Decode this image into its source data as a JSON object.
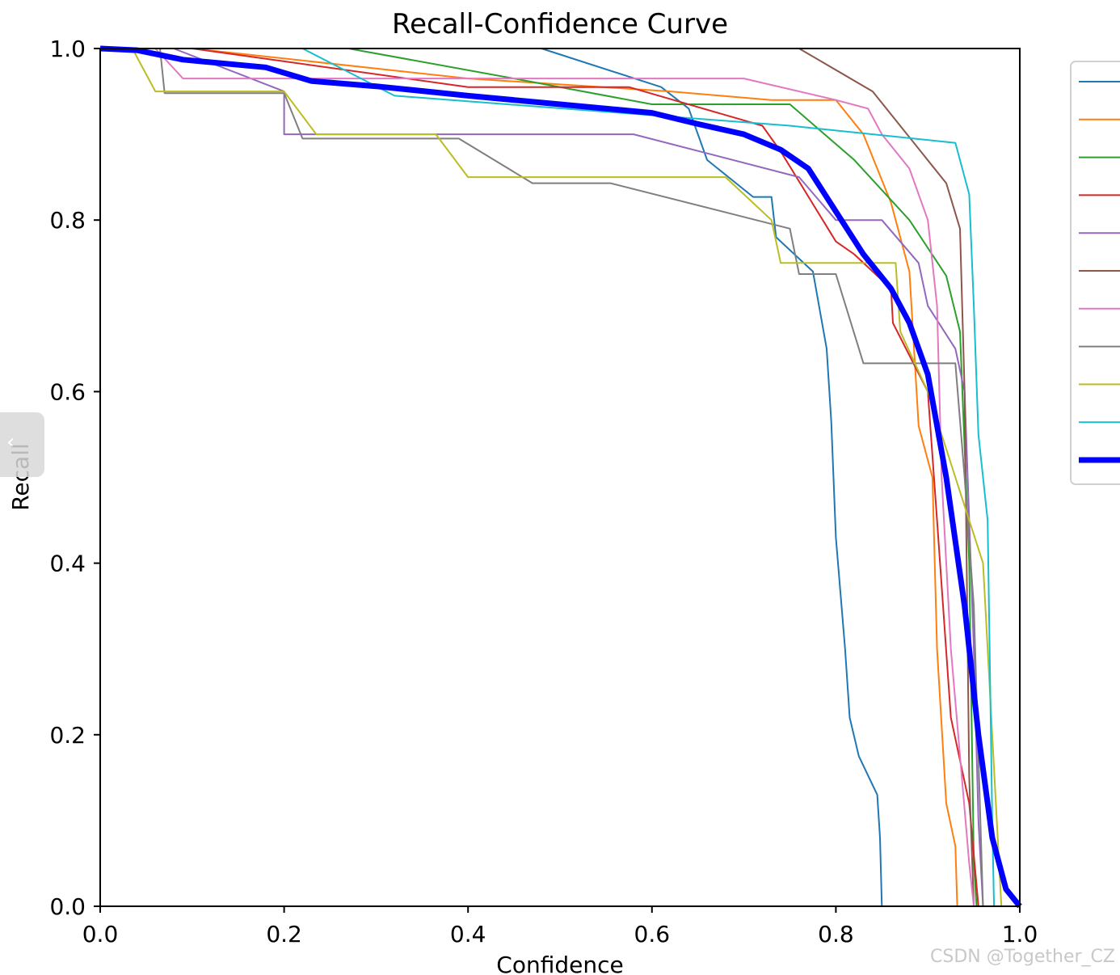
{
  "chart_data": {
    "type": "line",
    "title": "Recall-Confidence Curve",
    "xlabel": "Confidence",
    "ylabel": "Recall",
    "xlim": [
      0,
      1
    ],
    "ylim": [
      0,
      1
    ],
    "xticks": [
      "0.0",
      "0.2",
      "0.4",
      "0.6",
      "0.8",
      "1.0"
    ],
    "yticks": [
      "0.0",
      "0.2",
      "0.4",
      "0.6",
      "0.8",
      "1.0"
    ],
    "grid": false,
    "legend": "right, partially cut off",
    "series": [
      {
        "color": "#1f77b4",
        "width": 2,
        "points": [
          [
            0,
            1
          ],
          [
            0.48,
            1
          ],
          [
            0.61,
            0.955
          ],
          [
            0.64,
            0.93
          ],
          [
            0.66,
            0.87
          ],
          [
            0.71,
            0.827
          ],
          [
            0.73,
            0.827
          ],
          [
            0.735,
            0.78
          ],
          [
            0.775,
            0.74
          ],
          [
            0.79,
            0.65
          ],
          [
            0.795,
            0.565
          ],
          [
            0.8,
            0.43
          ],
          [
            0.81,
            0.3
          ],
          [
            0.815,
            0.22
          ],
          [
            0.825,
            0.175
          ],
          [
            0.845,
            0.13
          ],
          [
            0.848,
            0.08
          ],
          [
            0.85,
            0
          ],
          [
            1,
            0
          ]
        ]
      },
      {
        "color": "#ff7f0e",
        "width": 2,
        "points": [
          [
            0,
            1
          ],
          [
            0.1,
            1
          ],
          [
            0.4,
            0.965
          ],
          [
            0.62,
            0.95
          ],
          [
            0.73,
            0.94
          ],
          [
            0.8,
            0.94
          ],
          [
            0.83,
            0.9
          ],
          [
            0.86,
            0.82
          ],
          [
            0.88,
            0.74
          ],
          [
            0.89,
            0.56
          ],
          [
            0.905,
            0.5
          ],
          [
            0.91,
            0.3
          ],
          [
            0.92,
            0.12
          ],
          [
            0.93,
            0.07
          ],
          [
            0.932,
            0
          ],
          [
            1,
            0
          ]
        ]
      },
      {
        "color": "#2ca02c",
        "width": 2,
        "points": [
          [
            0,
            1
          ],
          [
            0.27,
            1
          ],
          [
            0.45,
            0.965
          ],
          [
            0.6,
            0.935
          ],
          [
            0.75,
            0.935
          ],
          [
            0.82,
            0.87
          ],
          [
            0.88,
            0.8
          ],
          [
            0.92,
            0.735
          ],
          [
            0.935,
            0.67
          ],
          [
            0.945,
            0.4
          ],
          [
            0.95,
            0.05
          ],
          [
            0.953,
            0
          ],
          [
            1,
            0
          ]
        ]
      },
      {
        "color": "#d62728",
        "width": 2,
        "points": [
          [
            0,
            1
          ],
          [
            0.1,
            1
          ],
          [
            0.2,
            0.985
          ],
          [
            0.4,
            0.955
          ],
          [
            0.575,
            0.955
          ],
          [
            0.72,
            0.91
          ],
          [
            0.74,
            0.88
          ],
          [
            0.8,
            0.775
          ],
          [
            0.82,
            0.76
          ],
          [
            0.86,
            0.72
          ],
          [
            0.862,
            0.68
          ],
          [
            0.9,
            0.6
          ],
          [
            0.91,
            0.45
          ],
          [
            0.925,
            0.22
          ],
          [
            0.945,
            0.12
          ],
          [
            0.955,
            0
          ],
          [
            1,
            0
          ]
        ]
      },
      {
        "color": "#9467bd",
        "width": 2,
        "points": [
          [
            0,
            1
          ],
          [
            0.08,
            1
          ],
          [
            0.2,
            0.95
          ],
          [
            0.2,
            0.9
          ],
          [
            0.58,
            0.9
          ],
          [
            0.76,
            0.85
          ],
          [
            0.8,
            0.8
          ],
          [
            0.85,
            0.8
          ],
          [
            0.89,
            0.75
          ],
          [
            0.9,
            0.7
          ],
          [
            0.93,
            0.65
          ],
          [
            0.94,
            0.6
          ],
          [
            0.95,
            0.3
          ],
          [
            0.955,
            0.1
          ],
          [
            0.96,
            0
          ],
          [
            1,
            0
          ]
        ]
      },
      {
        "color": "#8c564b",
        "width": 2,
        "points": [
          [
            0.76,
            1
          ],
          [
            0.84,
            0.95
          ],
          [
            0.92,
            0.843
          ],
          [
            0.935,
            0.79
          ],
          [
            0.94,
            0.6
          ],
          [
            0.945,
            0.15
          ],
          [
            0.95,
            0
          ],
          [
            1,
            0
          ]
        ]
      },
      {
        "color": "#e377c2",
        "width": 2,
        "points": [
          [
            0,
            1
          ],
          [
            0.06,
            1
          ],
          [
            0.09,
            0.965
          ],
          [
            0.7,
            0.965
          ],
          [
            0.8,
            0.94
          ],
          [
            0.835,
            0.93
          ],
          [
            0.85,
            0.9
          ],
          [
            0.88,
            0.86
          ],
          [
            0.9,
            0.8
          ],
          [
            0.91,
            0.7
          ],
          [
            0.915,
            0.5
          ],
          [
            0.925,
            0.3
          ],
          [
            0.945,
            0.05
          ],
          [
            0.95,
            0
          ],
          [
            1,
            0
          ]
        ]
      },
      {
        "color": "#7f7f7f",
        "width": 2,
        "points": [
          [
            0,
            1
          ],
          [
            0.065,
            1
          ],
          [
            0.07,
            0.948
          ],
          [
            0.2,
            0.948
          ],
          [
            0.22,
            0.895
          ],
          [
            0.39,
            0.895
          ],
          [
            0.47,
            0.843
          ],
          [
            0.555,
            0.843
          ],
          [
            0.75,
            0.79
          ],
          [
            0.76,
            0.737
          ],
          [
            0.8,
            0.737
          ],
          [
            0.83,
            0.633
          ],
          [
            0.93,
            0.633
          ],
          [
            0.94,
            0.5
          ],
          [
            0.95,
            0.35
          ],
          [
            0.96,
            0
          ],
          [
            1,
            0
          ]
        ]
      },
      {
        "color": "#bcbd22",
        "width": 2,
        "points": [
          [
            0,
            1
          ],
          [
            0.035,
            1
          ],
          [
            0.06,
            0.95
          ],
          [
            0.2,
            0.95
          ],
          [
            0.235,
            0.9
          ],
          [
            0.365,
            0.9
          ],
          [
            0.4,
            0.85
          ],
          [
            0.68,
            0.85
          ],
          [
            0.73,
            0.8
          ],
          [
            0.74,
            0.75
          ],
          [
            0.865,
            0.75
          ],
          [
            0.87,
            0.67
          ],
          [
            0.9,
            0.6
          ],
          [
            0.93,
            0.5
          ],
          [
            0.96,
            0.4
          ],
          [
            0.965,
            0.3
          ],
          [
            0.98,
            0
          ],
          [
            1,
            0
          ]
        ]
      },
      {
        "color": "#17becf",
        "width": 2,
        "points": [
          [
            0,
            1
          ],
          [
            0.22,
            1
          ],
          [
            0.32,
            0.945
          ],
          [
            0.75,
            0.91
          ],
          [
            0.93,
            0.89
          ],
          [
            0.945,
            0.83
          ],
          [
            0.95,
            0.7
          ],
          [
            0.955,
            0.55
          ],
          [
            0.965,
            0.45
          ],
          [
            0.97,
            0.1
          ],
          [
            0.972,
            0
          ],
          [
            1,
            0
          ]
        ]
      },
      {
        "color": "#0000ff",
        "width": 7,
        "points": [
          [
            0,
            1
          ],
          [
            0.04,
            0.998
          ],
          [
            0.09,
            0.987
          ],
          [
            0.18,
            0.978
          ],
          [
            0.23,
            0.962
          ],
          [
            0.3,
            0.956
          ],
          [
            0.4,
            0.945
          ],
          [
            0.5,
            0.935
          ],
          [
            0.6,
            0.925
          ],
          [
            0.65,
            0.912
          ],
          [
            0.7,
            0.9
          ],
          [
            0.74,
            0.882
          ],
          [
            0.77,
            0.86
          ],
          [
            0.8,
            0.81
          ],
          [
            0.83,
            0.76
          ],
          [
            0.86,
            0.72
          ],
          [
            0.88,
            0.68
          ],
          [
            0.9,
            0.62
          ],
          [
            0.92,
            0.5
          ],
          [
            0.94,
            0.35
          ],
          [
            0.955,
            0.2
          ],
          [
            0.97,
            0.08
          ],
          [
            0.985,
            0.02
          ],
          [
            1,
            0
          ]
        ]
      }
    ]
  }
}
